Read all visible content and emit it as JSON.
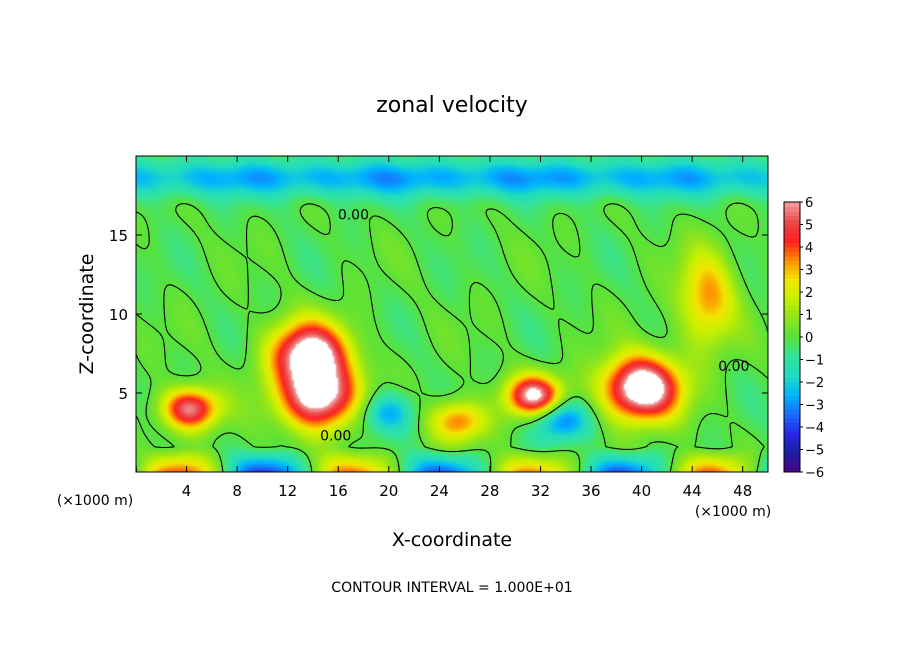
{
  "chart_data": {
    "type": "heatmap",
    "title": "zonal velocity",
    "xlabel": "X-coordinate",
    "ylabel": "Z-coordinate",
    "x_unit_label": "(×1000 m)",
    "footer": "CONTOUR INTERVAL = 1.000E+01",
    "xlim": [
      0,
      50
    ],
    "ylim": [
      0,
      20
    ],
    "x_ticks": [
      4,
      8,
      12,
      16,
      20,
      24,
      28,
      32,
      36,
      40,
      44,
      48
    ],
    "y_ticks": [
      5,
      10,
      15
    ],
    "grid": false,
    "colorbar": {
      "range": [
        -6,
        6
      ],
      "tick_labels": [
        "6",
        "5",
        "4",
        "3",
        "2",
        "1",
        "0",
        "−1",
        "−2",
        "−3",
        "−4",
        "−5",
        "−6"
      ],
      "colors": [
        "#4b0082",
        "#1e1ea0",
        "#2626e6",
        "#1a6cff",
        "#00b4ff",
        "#20dcc0",
        "#34e39c",
        "#58e23a",
        "#8fe41c",
        "#c8f000",
        "#f2e600",
        "#ff8c00",
        "#ff1f1f",
        "#e84a4a",
        "#f8a0a0"
      ]
    },
    "contour_labels": [
      "0.00",
      "0.00",
      "0.00"
    ],
    "background_field": -0.1,
    "features": [
      {
        "kind": "jet",
        "x": 25,
        "z": 18.6,
        "value": -2.6
      },
      {
        "kind": "positive_blob",
        "x": 13.7,
        "z": 7.5,
        "value": 7
      },
      {
        "kind": "positive_blob",
        "x": 14.5,
        "z": 4.7,
        "value": 7
      },
      {
        "kind": "positive_blob",
        "x": 4.3,
        "z": 4.0,
        "value": 6
      },
      {
        "kind": "positive_blob",
        "x": 31.5,
        "z": 4.8,
        "value": 6.5
      },
      {
        "kind": "positive_blob",
        "x": 40.0,
        "z": 5.3,
        "value": 8
      },
      {
        "kind": "positive_blob",
        "x": 45.2,
        "z": 11.0,
        "value": 3.5
      },
      {
        "kind": "positive_blob",
        "x": 25.5,
        "z": 3.2,
        "value": 4
      },
      {
        "kind": "negative_blob",
        "x": 33.5,
        "z": 3.3,
        "value": -3.5
      },
      {
        "kind": "negative_blob",
        "x": 19.8,
        "z": 3.7,
        "value": -2.8
      }
    ]
  }
}
